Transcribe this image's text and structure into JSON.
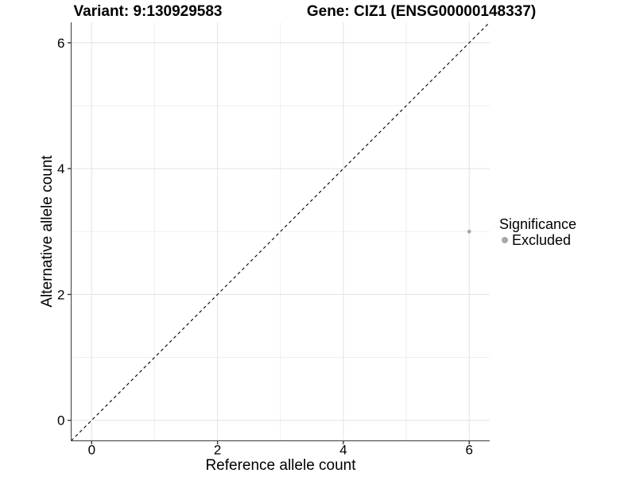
{
  "figure": {
    "title_left": "Variant: 9:130929583",
    "title_right": "Gene: CIZ1 (ENSG00000148337)"
  },
  "chart_data": {
    "type": "scatter",
    "xlabel": "Reference allele count",
    "ylabel": "Alternative allele count",
    "xlim": [
      -0.326,
      6.326
    ],
    "ylim": [
      -0.326,
      6.326
    ],
    "xticks": [
      0,
      2,
      4,
      6
    ],
    "yticks": [
      0,
      2,
      4,
      6
    ],
    "xminor": [
      1,
      3,
      5
    ],
    "yminor": [
      1,
      3,
      5
    ],
    "grid": true,
    "identity_line": {
      "style": "dashed",
      "slope": 1,
      "intercept": 0
    },
    "series": [
      {
        "name": "Excluded",
        "color": "#a8a8a8",
        "points": [
          {
            "x": 6,
            "y": 3
          }
        ]
      }
    ],
    "legend": {
      "title": "Significance",
      "position": "right",
      "items": [
        {
          "label": "Excluded",
          "color": "#a8a8a8"
        }
      ]
    },
    "colors": {
      "axis": "#3a3a3a",
      "grid_major": "#e3e3e3",
      "grid_minor": "#efefef",
      "dashed_line": "#000000",
      "tick_text": "#000000"
    }
  }
}
